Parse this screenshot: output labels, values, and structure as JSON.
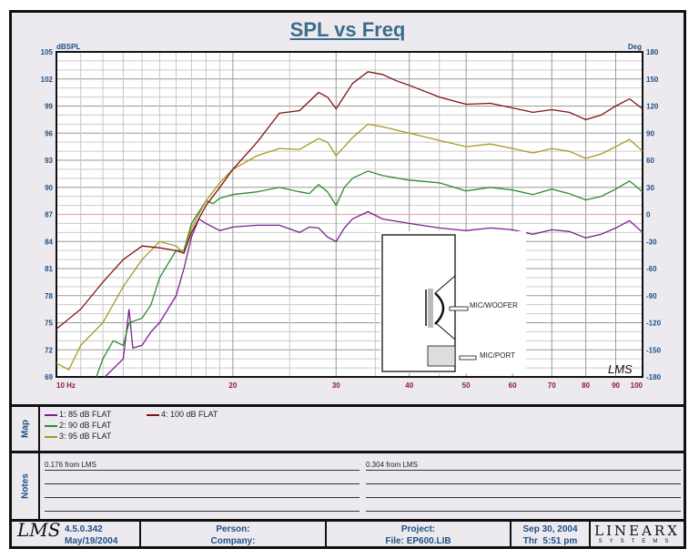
{
  "chart_data": {
    "type": "line",
    "title": "SPL vs Freq",
    "ylabel": "dBSPL",
    "y2label": "Deg",
    "xscale": "log",
    "xlim": [
      10,
      100
    ],
    "ylim": [
      69,
      105
    ],
    "y2lim": [
      -180,
      180
    ],
    "grid": true,
    "x_ticks": [
      "10 Hz",
      "20",
      "30",
      "40",
      "50",
      "60",
      "70",
      "80",
      "90",
      "100"
    ],
    "y_ticks": [
      "105",
      "102",
      "99",
      "96",
      "93",
      "90",
      "87",
      "84",
      "81",
      "78",
      "75",
      "72",
      "69"
    ],
    "y2_ticks": [
      "180",
      "150",
      "120",
      "90",
      "60",
      "30",
      "0",
      "-30",
      "-60",
      "-90",
      "-120",
      "-150",
      "-180"
    ],
    "reference_line": {
      "y": 87,
      "color": "#E8A8B8"
    },
    "series": [
      {
        "name": "1: 85 dB FLAT",
        "color": "#7B1F8F",
        "x": [
          12.1,
          13,
          13.3,
          13.5,
          14,
          14.5,
          15,
          16,
          16.5,
          17,
          17.5,
          18,
          19,
          20,
          22,
          24,
          26,
          27,
          28,
          29,
          30,
          31,
          32,
          34,
          36,
          40,
          45,
          50,
          55,
          60,
          65,
          70,
          75,
          80,
          85,
          90,
          95,
          100
        ],
        "y": [
          69,
          71,
          76.5,
          72.2,
          72.5,
          74,
          75,
          78,
          81,
          84.5,
          86.5,
          86,
          85.2,
          85.6,
          85.8,
          85.8,
          85,
          85.6,
          85.5,
          84.5,
          84,
          85.5,
          86.5,
          87.3,
          86.5,
          86,
          85.5,
          85.2,
          85.5,
          85.3,
          84.8,
          85.3,
          85.1,
          84.4,
          84.8,
          85.5,
          86.3,
          85
        ]
      },
      {
        "name": "2: 90 dB FLAT",
        "color": "#2E8B2E",
        "x": [
          11.7,
          12,
          12.5,
          13,
          13.3,
          14,
          14.5,
          15,
          16,
          16.5,
          17,
          18,
          18.5,
          19,
          20,
          22,
          24,
          26,
          27,
          28,
          29,
          30,
          31,
          32,
          34,
          36,
          40,
          45,
          50,
          55,
          60,
          65,
          70,
          75,
          80,
          85,
          90,
          95,
          100
        ],
        "y": [
          69,
          71,
          73,
          72.5,
          75,
          75.5,
          77,
          80,
          83,
          83,
          86,
          88.5,
          88.2,
          88.8,
          89.2,
          89.5,
          90,
          89.5,
          89.3,
          90.3,
          89.5,
          88,
          90,
          91,
          91.8,
          91.3,
          90.8,
          90.5,
          89.6,
          90,
          89.7,
          89.2,
          89.8,
          89.3,
          88.6,
          89,
          89.8,
          90.7,
          89.5
        ]
      },
      {
        "name": "3: 95 dB FLAT",
        "color": "#A89A1E",
        "x": [
          10,
          10.5,
          11,
          12,
          13,
          14,
          15,
          16,
          16.5,
          17,
          18,
          19,
          20,
          22,
          24,
          26,
          28,
          29,
          30,
          32,
          34,
          36,
          40,
          45,
          50,
          55,
          60,
          65,
          70,
          75,
          80,
          85,
          90,
          95,
          100
        ],
        "y": [
          70.5,
          69.8,
          72.5,
          75,
          79,
          82,
          84,
          83.5,
          82.7,
          85.5,
          88.5,
          90.5,
          92,
          93.5,
          94.3,
          94.2,
          95.4,
          95,
          93.5,
          95.5,
          97,
          96.7,
          96,
          95.2,
          94.5,
          94.8,
          94.3,
          93.8,
          94.3,
          94,
          93.2,
          93.7,
          94.5,
          95.3,
          94
        ]
      },
      {
        "name": "4: 100 dB FLAT",
        "color": "#7E1414",
        "x": [
          10,
          11,
          12,
          13,
          14,
          15,
          16,
          16.5,
          17,
          18,
          19,
          20,
          22,
          24,
          26,
          28,
          29,
          30,
          32,
          34,
          36,
          38,
          40,
          45,
          50,
          55,
          60,
          65,
          70,
          75,
          80,
          85,
          90,
          95,
          100
        ],
        "y": [
          74.3,
          76.5,
          79.5,
          82,
          83.5,
          83.3,
          83,
          82.7,
          85,
          88,
          90,
          92,
          95,
          98.2,
          98.5,
          100.5,
          100,
          98.7,
          101.5,
          102.8,
          102.5,
          101.8,
          101.3,
          100,
          99.2,
          99.3,
          98.8,
          98.3,
          98.6,
          98.3,
          97.5,
          98,
          99,
          99.8,
          98.7
        ]
      }
    ]
  },
  "inset": {
    "woofer_label": "MIC/WOOFER",
    "port_label": "MIC/PORT",
    "watermark": "LMS"
  },
  "map": {
    "label": "Map"
  },
  "notes": {
    "label": "Notes",
    "left": "0.176 from LMS",
    "right": "0.304 from LMS"
  },
  "footer": {
    "logo": "LMS",
    "version": "4.5.0.342",
    "build_date": "May/19/2004",
    "person": "Person:",
    "company": "Company:",
    "project": "Project:",
    "file": "File: EP600.LIB",
    "date": "Sep 30, 2004",
    "time": "Thr  5:51 pm",
    "brand": "LINEARX",
    "brand_sub": "SYSTEMS"
  }
}
